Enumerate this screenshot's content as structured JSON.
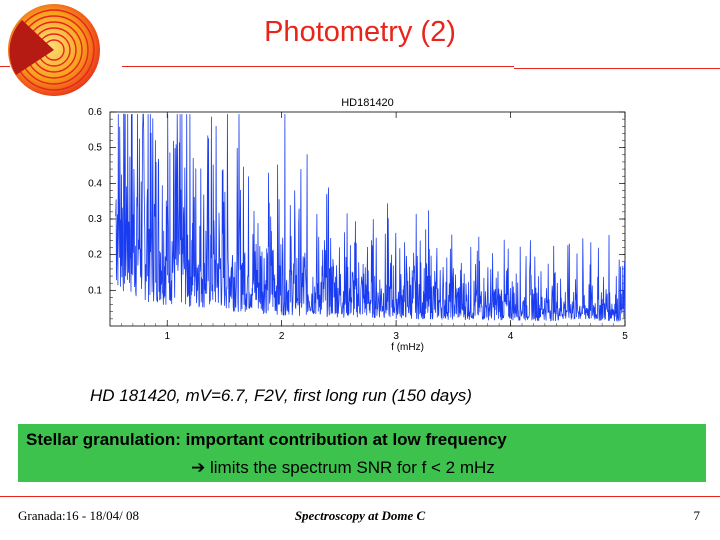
{
  "slide": {
    "title": "Photometry (2)",
    "caption": "HD 181420, mV=6.7, F2V, first long run (150 days)",
    "box_line1": "Stellar granulation: important contribution at low frequency",
    "box_line2_arrow": "➔",
    "box_line2": " limits the spectrum SNR for f < 2 mHz",
    "footer_left": "Granada:16 - 18/04/ 08",
    "footer_center": "Spectroscopy at Dome C",
    "footer_right": "7"
  },
  "colors": {
    "title": "#e8251b",
    "series": "#1a3cf0",
    "box": "#3ec24e"
  },
  "chart_data": {
    "type": "line",
    "title": "HD181420",
    "xlabel": "f (mHz)",
    "ylabel": "",
    "xlim": [
      0.5,
      5
    ],
    "ylim": [
      0,
      0.6
    ],
    "xticks": [
      "1",
      "2",
      "3",
      "4",
      "5"
    ],
    "yticks": [
      "0.1",
      "0.2",
      "0.3",
      "0.4",
      "0.5",
      "0.6"
    ],
    "series": [
      {
        "x": [
          0.55,
          0.6,
          0.65,
          0.7,
          0.8,
          0.9,
          1.0,
          1.1,
          1.2,
          1.3,
          1.4,
          1.5,
          1.6,
          1.7,
          1.8,
          1.9,
          2.0,
          2.2,
          2.4,
          2.6,
          2.8,
          3.0,
          3.2,
          3.4,
          3.6,
          3.8,
          4.0,
          4.2,
          4.4,
          4.6,
          4.8,
          5.0
        ],
        "y": [
          0.36,
          0.34,
          0.31,
          0.29,
          0.27,
          0.25,
          0.23,
          0.21,
          0.2,
          0.19,
          0.18,
          0.17,
          0.16,
          0.15,
          0.14,
          0.13,
          0.12,
          0.11,
          0.1,
          0.09,
          0.085,
          0.08,
          0.075,
          0.07,
          0.065,
          0.062,
          0.06,
          0.058,
          0.056,
          0.055,
          0.054,
          0.054
        ]
      }
    ]
  }
}
